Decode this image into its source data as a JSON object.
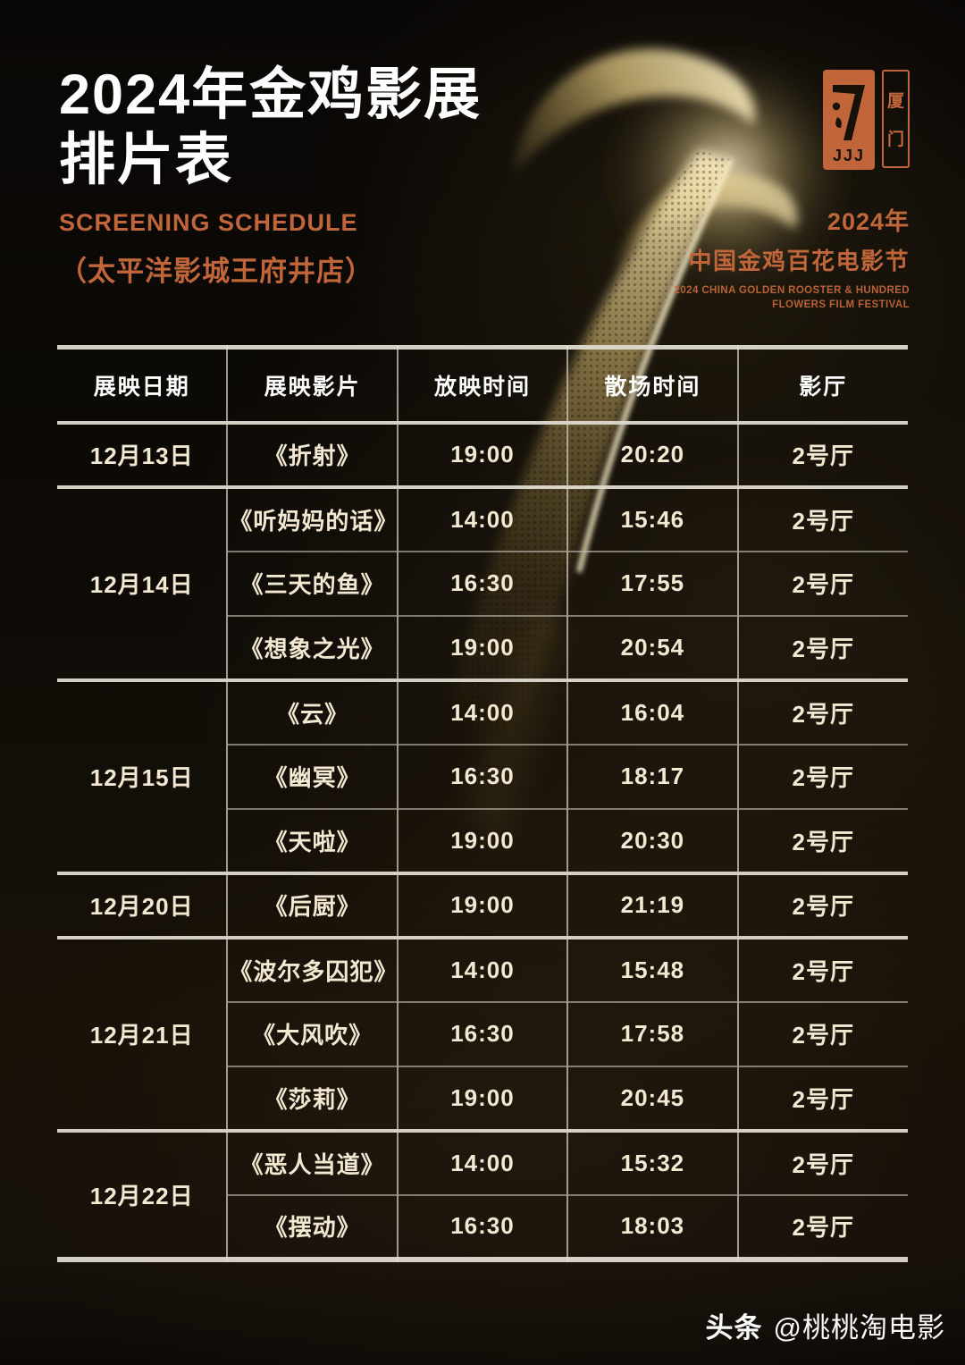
{
  "header": {
    "title_line1": "2024年金鸡影展",
    "title_line2": "排片表",
    "subtitle_en": "SCREENING SCHEDULE",
    "venue": "（太平洋影城王府井店）"
  },
  "festival": {
    "year": "2024年",
    "name_cn": "中国金鸡百花电影节",
    "name_en_line1": "2024 CHINA GOLDEN ROOSTER & HUNDRED",
    "name_en_line2": "FLOWERS FILM FESTIVAL",
    "logo_letters": "JJJ",
    "seal_char1": "厦",
    "seal_char2": "门"
  },
  "colors": {
    "accent": "#c0663a",
    "background": "#0d0a06",
    "cell_text": "#f3e9d2",
    "header_text": "#ffffff",
    "gold_light": "#f6ecc4"
  },
  "table": {
    "headers": [
      "展映日期",
      "展映影片",
      "放映时间",
      "散场时间",
      "影厅"
    ],
    "groups": [
      {
        "date": "12月13日",
        "rows": [
          {
            "film": "《折射》",
            "start": "19:00",
            "end": "20:20",
            "hall": "2号厅"
          }
        ]
      },
      {
        "date": "12月14日",
        "rows": [
          {
            "film": "《听妈妈的话》",
            "start": "14:00",
            "end": "15:46",
            "hall": "2号厅"
          },
          {
            "film": "《三天的鱼》",
            "start": "16:30",
            "end": "17:55",
            "hall": "2号厅"
          },
          {
            "film": "《想象之光》",
            "start": "19:00",
            "end": "20:54",
            "hall": "2号厅"
          }
        ]
      },
      {
        "date": "12月15日",
        "rows": [
          {
            "film": "《云》",
            "start": "14:00",
            "end": "16:04",
            "hall": "2号厅"
          },
          {
            "film": "《幽冥》",
            "start": "16:30",
            "end": "18:17",
            "hall": "2号厅"
          },
          {
            "film": "《天啦》",
            "start": "19:00",
            "end": "20:30",
            "hall": "2号厅"
          }
        ]
      },
      {
        "date": "12月20日",
        "rows": [
          {
            "film": "《后厨》",
            "start": "19:00",
            "end": "21:19",
            "hall": "2号厅"
          }
        ]
      },
      {
        "date": "12月21日",
        "rows": [
          {
            "film": "《波尔多囚犯》",
            "start": "14:00",
            "end": "15:48",
            "hall": "2号厅"
          },
          {
            "film": "《大风吹》",
            "start": "16:30",
            "end": "17:58",
            "hall": "2号厅"
          },
          {
            "film": "《莎莉》",
            "start": "19:00",
            "end": "20:45",
            "hall": "2号厅"
          }
        ]
      },
      {
        "date": "12月22日",
        "rows": [
          {
            "film": "《恶人当道》",
            "start": "14:00",
            "end": "15:32",
            "hall": "2号厅"
          },
          {
            "film": "《摆动》",
            "start": "16:30",
            "end": "18:03",
            "hall": "2号厅"
          }
        ]
      }
    ]
  },
  "watermark": {
    "brand": "头条",
    "handle": "@桃桃淘电影"
  }
}
